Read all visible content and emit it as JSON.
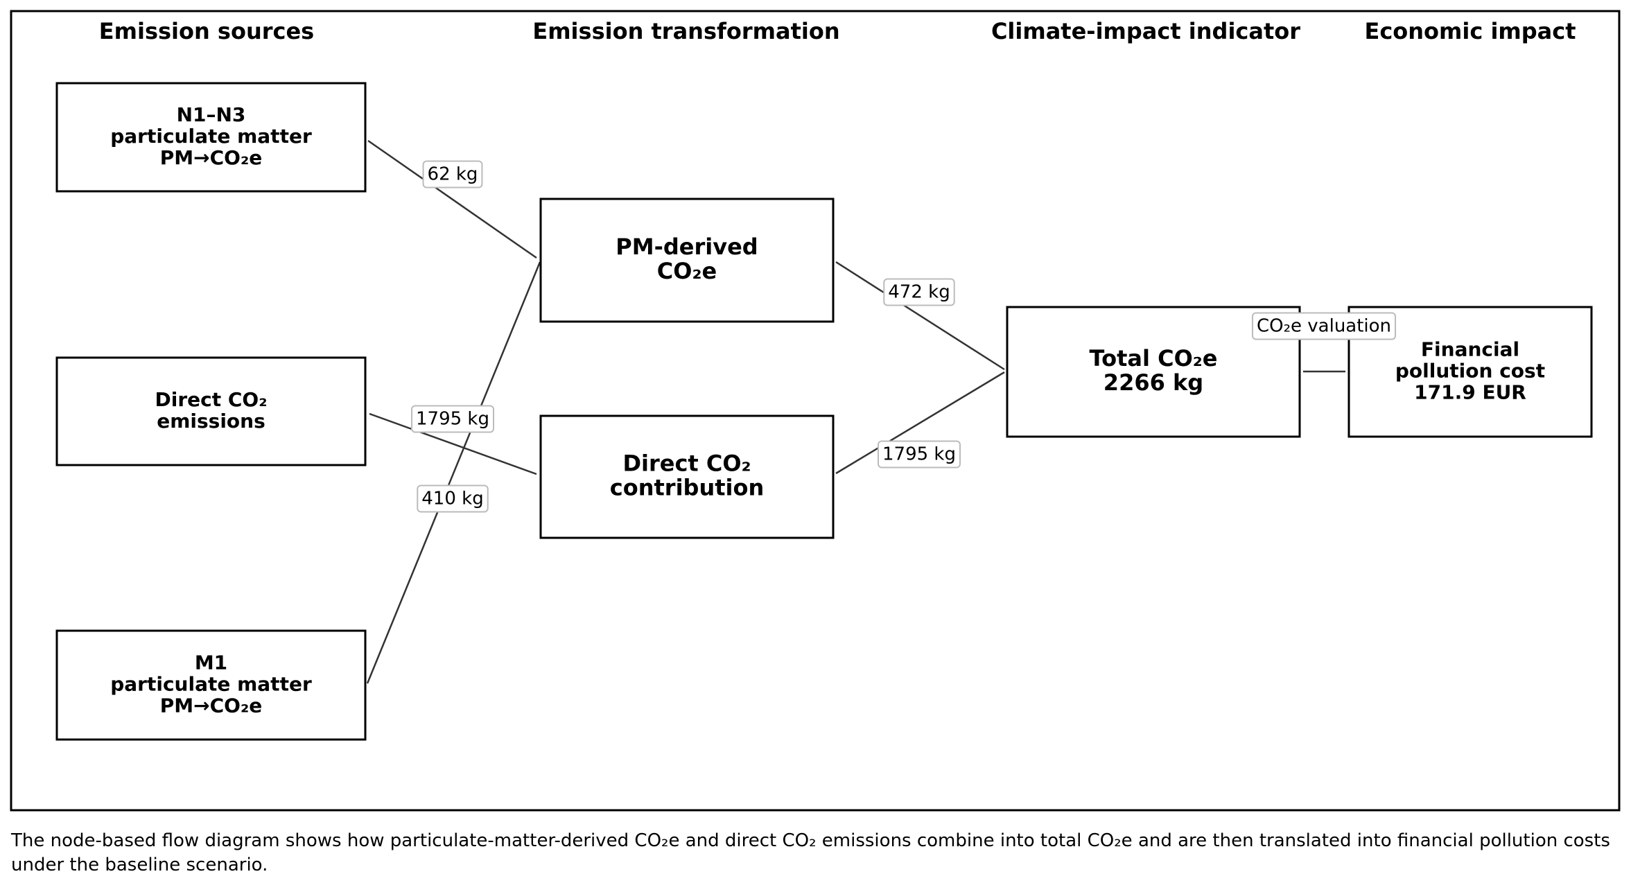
{
  "headers": [
    "Emission sources",
    "Emission transformation",
    "Climate-impact indicator",
    "Economic impact"
  ],
  "nodes": [
    {
      "lines": [
        "N1–N3",
        "particulate matter",
        "PM→CO₂e"
      ]
    },
    {
      "lines": [
        "Direct CO₂",
        "emissions"
      ]
    },
    {
      "lines": [
        "M1",
        "particulate matter",
        "PM→CO₂e"
      ]
    },
    {
      "lines": [
        "PM-derived",
        "CO₂e"
      ]
    },
    {
      "lines": [
        "Direct CO₂",
        "contribution"
      ]
    },
    {
      "lines": [
        "Total CO₂e",
        "2266 kg"
      ]
    },
    {
      "lines": [
        "Financial",
        "pollution cost",
        "171.9 EUR"
      ]
    }
  ],
  "edges": [
    {
      "label": "62 kg"
    },
    {
      "label": "1795 kg"
    },
    {
      "label": "410 kg"
    },
    {
      "label": "472 kg"
    },
    {
      "label": "1795 kg"
    },
    {
      "label": "CO₂e valuation"
    }
  ],
  "caption": "The node-based flow diagram shows how particulate-matter-derived CO₂e and direct CO₂ emissions combine into total CO₂e and are then translated into financial pollution costs under the baseline scenario."
}
